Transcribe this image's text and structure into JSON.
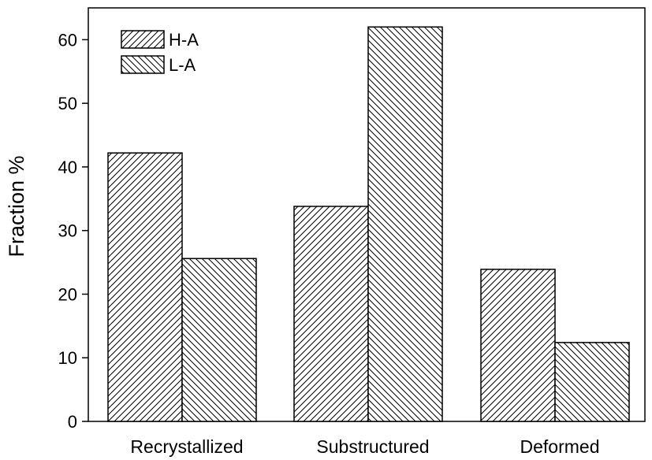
{
  "chart_data": {
    "type": "bar",
    "categories": [
      "Recrystallized",
      "Substructured",
      "Deformed"
    ],
    "series": [
      {
        "name": "H-A",
        "values": [
          42.2,
          33.8,
          23.9
        ],
        "hatch": "forward"
      },
      {
        "name": "L-A",
        "values": [
          25.6,
          62.0,
          12.4
        ],
        "hatch": "backward"
      }
    ],
    "title": "",
    "xlabel": "",
    "ylabel": "Fraction %",
    "ylim": [
      0,
      65
    ],
    "yticks": [
      0,
      10,
      20,
      30,
      40,
      50,
      60
    ],
    "grid": false,
    "legend_position": "top-left",
    "colors": {
      "stroke": "#000000",
      "background": "#ffffff"
    }
  }
}
